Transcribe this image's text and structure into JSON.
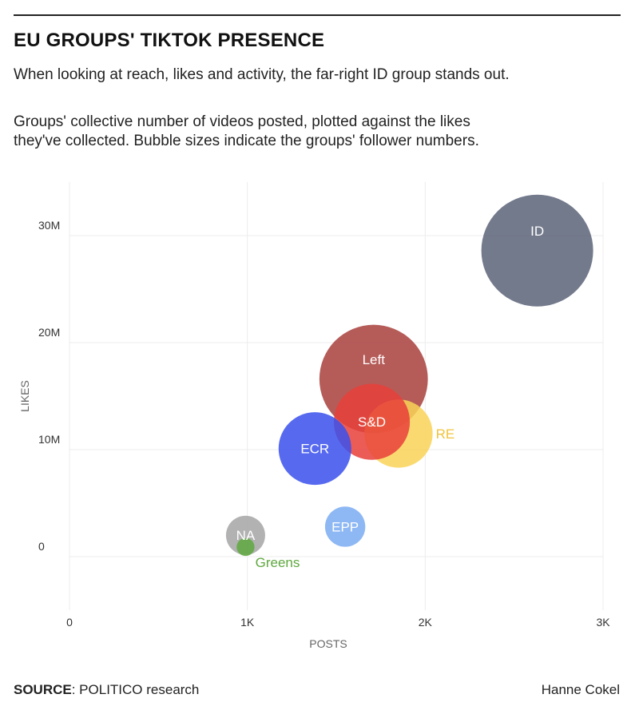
{
  "header": {
    "title": "EU GROUPS' TIKTOK PRESENCE",
    "subtitle": "When looking at reach, likes and activity, the far-right ID group stands out.",
    "description_lines": [
      "Groups' collective number of videos posted, plotted against the likes",
      "they've collected. Bubble sizes indicate the groups' follower numbers."
    ]
  },
  "footer": {
    "source_label": "SOURCE",
    "source_text": ": POLITICO research",
    "credit": "Hanne Cokel"
  },
  "chart_data": {
    "type": "scatter",
    "bubble": true,
    "title": "",
    "xlabel": "POSTS",
    "ylabel": "LIKES",
    "xlim": [
      0,
      3000
    ],
    "ylim": [
      -5000000,
      35000000
    ],
    "x_ticks": [
      0,
      1000,
      2000,
      3000
    ],
    "x_tick_labels": [
      "0",
      "1K",
      "2K",
      "3K"
    ],
    "y_ticks": [
      0,
      10000000,
      20000000,
      30000000
    ],
    "y_tick_labels": [
      "0",
      "10M",
      "20M",
      "30M"
    ],
    "grid": true,
    "legend": "none",
    "size_note": "bubble radius relative to follower numbers (ID = 1.0)",
    "points": [
      {
        "label": "ID",
        "x": 2630,
        "y": 28600000,
        "size": 1.0,
        "color": "#5a6378",
        "label_color": "#ffffff",
        "label_position": "inside"
      },
      {
        "label": "Left",
        "x": 1710,
        "y": 16600000,
        "size": 0.97,
        "color": "#a8403c",
        "label_color": "#ffffff",
        "label_position": "inside"
      },
      {
        "label": "RE",
        "x": 1850,
        "y": 11500000,
        "size": 0.61,
        "color": "#f9d457",
        "label_color": "#f0c43c",
        "label_position": "right"
      },
      {
        "label": "S&D",
        "x": 1700,
        "y": 12600000,
        "size": 0.68,
        "color": "#e8403a",
        "label_color": "#ffffff",
        "label_position": "inside"
      },
      {
        "label": "ECR",
        "x": 1380,
        "y": 10100000,
        "size": 0.65,
        "color": "#3a50ec",
        "label_color": "#ffffff",
        "label_position": "inside"
      },
      {
        "label": "EPP",
        "x": 1550,
        "y": 2800000,
        "size": 0.36,
        "color": "#7aabf2",
        "label_color": "#ffffff",
        "label_position": "inside"
      },
      {
        "label": "NA",
        "x": 990,
        "y": 2000000,
        "size": 0.35,
        "color": "#a5a5a5",
        "label_color": "#ffffff",
        "label_position": "inside"
      },
      {
        "label": "Greens",
        "x": 990,
        "y": 900000,
        "size": 0.16,
        "color": "#5fa83f",
        "label_color": "#5fa83f",
        "label_position": "below-right"
      }
    ]
  }
}
